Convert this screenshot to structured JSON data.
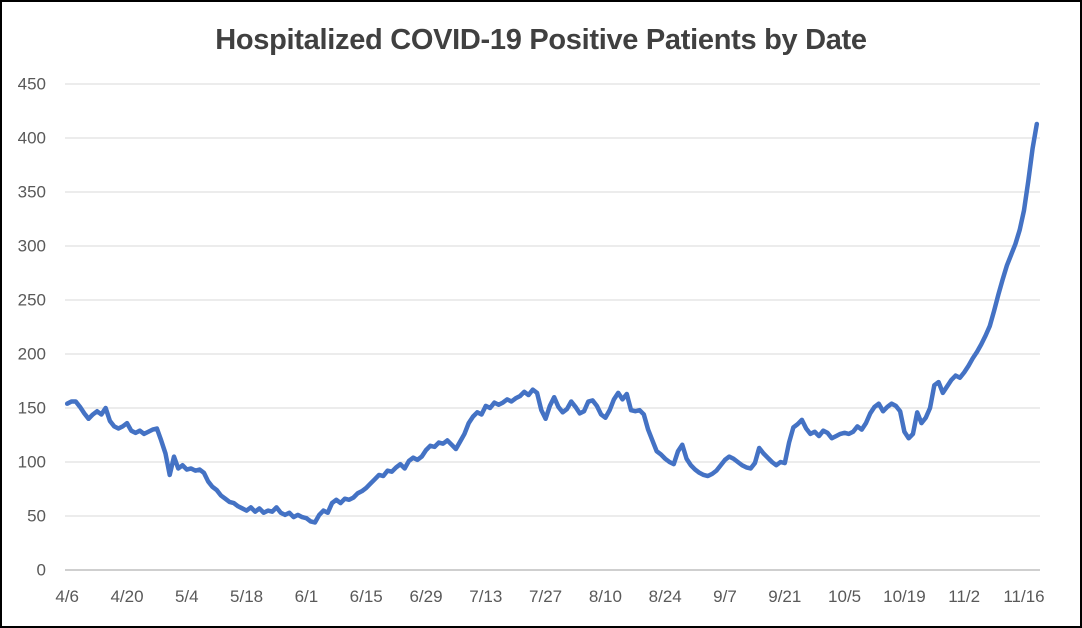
{
  "window": {
    "background": "#ffffff",
    "border_color": "#000000"
  },
  "colors": {
    "series_line": "#4472C4",
    "title_text": "#404040",
    "axis_text": "#595959",
    "gridline": "#D9D9D9",
    "axis_line": "#BFBFBF"
  },
  "chart_data": {
    "type": "line",
    "title": "Hospitalized COVID-19 Positive Patients by Date",
    "xlabel": "",
    "ylabel": "",
    "ylim": [
      0,
      450
    ],
    "y_ticks": [
      0,
      50,
      100,
      150,
      200,
      250,
      300,
      350,
      400,
      450
    ],
    "x_tick_labels": [
      "4/6",
      "4/20",
      "5/4",
      "5/18",
      "6/1",
      "6/15",
      "6/29",
      "7/13",
      "7/27",
      "8/10",
      "8/24",
      "9/7",
      "9/21",
      "10/5",
      "10/19",
      "11/2",
      "11/16"
    ],
    "x_tick_interval_days": 14,
    "grid": "horizontal-only",
    "legend": "none",
    "dates": [
      "4/6",
      "4/7",
      "4/8",
      "4/9",
      "4/10",
      "4/11",
      "4/12",
      "4/13",
      "4/14",
      "4/15",
      "4/16",
      "4/17",
      "4/18",
      "4/19",
      "4/20",
      "4/21",
      "4/22",
      "4/23",
      "4/24",
      "4/25",
      "4/26",
      "4/27",
      "4/28",
      "4/29",
      "4/30",
      "5/1",
      "5/2",
      "5/3",
      "5/4",
      "5/5",
      "5/6",
      "5/7",
      "5/8",
      "5/9",
      "5/10",
      "5/11",
      "5/12",
      "5/13",
      "5/14",
      "5/15",
      "5/16",
      "5/17",
      "5/18",
      "5/19",
      "5/20",
      "5/21",
      "5/22",
      "5/23",
      "5/24",
      "5/25",
      "5/26",
      "5/27",
      "5/28",
      "5/29",
      "5/30",
      "5/31",
      "6/1",
      "6/2",
      "6/3",
      "6/4",
      "6/5",
      "6/6",
      "6/7",
      "6/8",
      "6/9",
      "6/10",
      "6/11",
      "6/12",
      "6/13",
      "6/14",
      "6/15",
      "6/16",
      "6/17",
      "6/18",
      "6/19",
      "6/20",
      "6/21",
      "6/22",
      "6/23",
      "6/24",
      "6/25",
      "6/26",
      "6/27",
      "6/28",
      "6/29",
      "6/30",
      "7/1",
      "7/2",
      "7/3",
      "7/4",
      "7/5",
      "7/6",
      "7/7",
      "7/8",
      "7/9",
      "7/10",
      "7/11",
      "7/12",
      "7/13",
      "7/14",
      "7/15",
      "7/16",
      "7/17",
      "7/18",
      "7/19",
      "7/20",
      "7/21",
      "7/22",
      "7/23",
      "7/24",
      "7/25",
      "7/26",
      "7/27",
      "7/28",
      "7/29",
      "7/30",
      "7/31",
      "8/1",
      "8/2",
      "8/3",
      "8/4",
      "8/5",
      "8/6",
      "8/7",
      "8/8",
      "8/9",
      "8/10",
      "8/11",
      "8/12",
      "8/13",
      "8/14",
      "8/15",
      "8/16",
      "8/17",
      "8/18",
      "8/19",
      "8/20",
      "8/21",
      "8/22",
      "8/23",
      "8/24",
      "8/25",
      "8/26",
      "8/27",
      "8/28",
      "8/29",
      "8/30",
      "8/31",
      "9/1",
      "9/2",
      "9/3",
      "9/4",
      "9/5",
      "9/6",
      "9/7",
      "9/8",
      "9/9",
      "9/10",
      "9/11",
      "9/12",
      "9/13",
      "9/14",
      "9/15",
      "9/16",
      "9/17",
      "9/18",
      "9/19",
      "9/20",
      "9/21",
      "9/22",
      "9/23",
      "9/24",
      "9/25",
      "9/26",
      "9/27",
      "9/28",
      "9/29",
      "9/30",
      "10/1",
      "10/2",
      "10/3",
      "10/4",
      "10/5",
      "10/6",
      "10/7",
      "10/8",
      "10/9",
      "10/10",
      "10/11",
      "10/12",
      "10/13",
      "10/14",
      "10/15",
      "10/16",
      "10/17",
      "10/18",
      "10/19",
      "10/20",
      "10/21",
      "10/22",
      "10/23",
      "10/24",
      "10/25",
      "10/26",
      "10/27",
      "10/28",
      "10/29",
      "10/30",
      "10/31",
      "11/1",
      "11/2",
      "11/3",
      "11/4",
      "11/5",
      "11/6",
      "11/7",
      "11/8",
      "11/9",
      "11/10",
      "11/11",
      "11/12",
      "11/13",
      "11/14",
      "11/15",
      "11/16",
      "11/17",
      "11/18",
      "11/19"
    ],
    "values": [
      154,
      156,
      156,
      151,
      145,
      140,
      144,
      147,
      144,
      150,
      138,
      133,
      131,
      133,
      136,
      129,
      127,
      129,
      126,
      128,
      130,
      131,
      120,
      108,
      88,
      105,
      94,
      97,
      93,
      94,
      92,
      93,
      90,
      82,
      77,
      74,
      69,
      66,
      63,
      62,
      59,
      57,
      55,
      58,
      54,
      57,
      53,
      55,
      54,
      58,
      53,
      51,
      53,
      49,
      51,
      49,
      48,
      45,
      44,
      51,
      55,
      53,
      62,
      65,
      62,
      66,
      65,
      67,
      71,
      73,
      76,
      80,
      84,
      88,
      87,
      92,
      91,
      95,
      98,
      94,
      101,
      104,
      102,
      105,
      111,
      115,
      114,
      118,
      117,
      120,
      116,
      112,
      119,
      126,
      136,
      142,
      146,
      144,
      152,
      150,
      155,
      153,
      155,
      158,
      156,
      159,
      161,
      165,
      162,
      167,
      164,
      148,
      140,
      152,
      160,
      151,
      146,
      149,
      156,
      151,
      145,
      147,
      156,
      157,
      152,
      144,
      141,
      148,
      158,
      164,
      158,
      163,
      148,
      147,
      148,
      144,
      130,
      120,
      110,
      107,
      103,
      100,
      98,
      110,
      116,
      103,
      97,
      93,
      90,
      88,
      87,
      89,
      92,
      97,
      102,
      105,
      103,
      100,
      97,
      95,
      94,
      99,
      113,
      108,
      104,
      100,
      97,
      100,
      99,
      118,
      132,
      135,
      139,
      131,
      126,
      128,
      124,
      129,
      127,
      122,
      124,
      126,
      127,
      126,
      128,
      133,
      130,
      136,
      145,
      151,
      154,
      147,
      151,
      154,
      152,
      147,
      128,
      122,
      126,
      146,
      136,
      141,
      150,
      171,
      174,
      164,
      170,
      176,
      180,
      178,
      183,
      189,
      196,
      202,
      209,
      217,
      226,
      240,
      255,
      269,
      282,
      292,
      302,
      315,
      333,
      360,
      390,
      413
    ]
  }
}
